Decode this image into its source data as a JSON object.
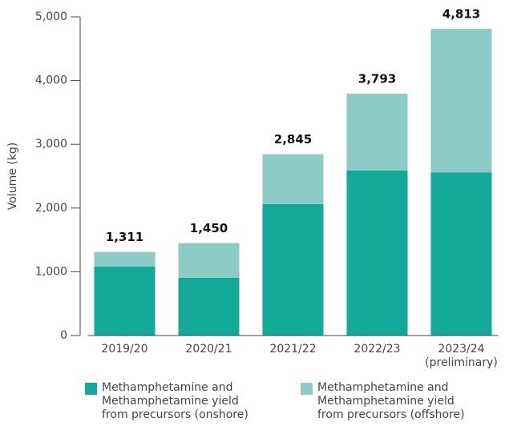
{
  "chart_data": {
    "type": "stacked_bar",
    "y_label": "Volume (kg)",
    "categories": [
      "2019/20",
      "2020/21",
      "2021/22",
      "2022/23",
      "2023/24\n(preliminary)"
    ],
    "series": [
      {
        "name": "Methamphetamine and\nMethamphetamine yield\nfrom precursors (onshore)",
        "color": "#12a89a",
        "values": [
          1080,
          905,
          2060,
          2588,
          2560
        ]
      },
      {
        "name": "Methamphetamine and\nMethamphetamine yield\nfrom precursors (offshore)",
        "color": "#8ccbc6",
        "values": [
          231,
          545,
          785,
          1205,
          2253
        ]
      }
    ],
    "totals": {
      "values": [
        1311,
        1450,
        2845,
        3793,
        4813
      ],
      "value_labels": [
        "1,311",
        "1,450",
        "2,845",
        "3,793",
        "4,813"
      ]
    },
    "ylim": [
      0,
      5000
    ],
    "yticks": [
      0,
      {
        "value": 1000,
        "label": "1,000"
      },
      {
        "value": 2000,
        "label": "2,000"
      },
      {
        "value": 3000,
        "label": "3,000"
      },
      {
        "value": 4000,
        "label": "4,000"
      },
      {
        "value": 5000,
        "label": "5,000"
      }
    ]
  }
}
